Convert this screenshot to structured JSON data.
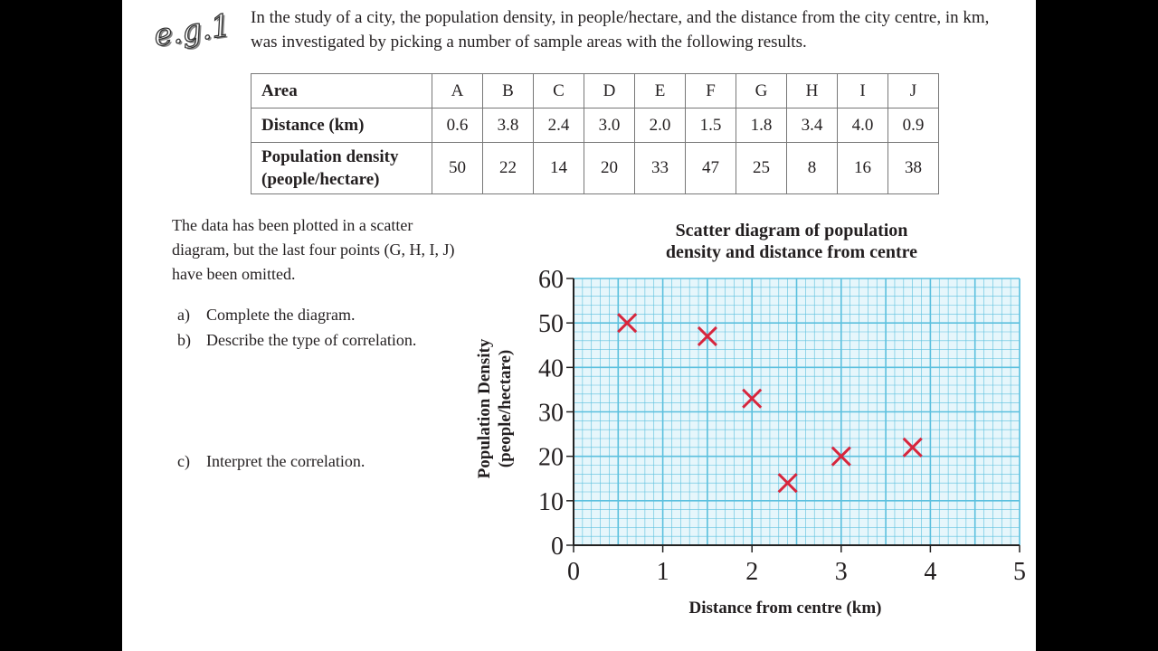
{
  "label": "e.g.1",
  "intro": "In the study of a city, the population density, in people/hectare, and the distance from the city centre, in km, was investigated by picking a number of sample areas with the following results.",
  "table": {
    "rows": [
      {
        "header": "Area",
        "values": [
          "A",
          "B",
          "C",
          "D",
          "E",
          "F",
          "G",
          "H",
          "I",
          "J"
        ]
      },
      {
        "header": "Distance (km)",
        "values": [
          "0.6",
          "3.8",
          "2.4",
          "3.0",
          "2.0",
          "1.5",
          "1.8",
          "3.4",
          "4.0",
          "0.9"
        ]
      },
      {
        "header": "Population density (people/hectare)",
        "values": [
          "50",
          "22",
          "14",
          "20",
          "33",
          "47",
          "25",
          "8",
          "16",
          "38"
        ]
      }
    ]
  },
  "text": "The data has been plotted in a scatter diagram, but the last four points (G, H, I, J) have been omitted.",
  "questions": [
    {
      "letter": "a)",
      "text": "Complete the diagram."
    },
    {
      "letter": "b)",
      "text": "Describe the type of correlation."
    },
    {
      "letter": "c)",
      "text": "Interpret the correlation."
    }
  ],
  "chart_data": {
    "type": "scatter",
    "title": "Scatter diagram of population density and distance from centre",
    "title_lines": [
      "Scatter diagram of population",
      "density and distance from centre"
    ],
    "xlabel": "Distance from centre (km)",
    "ylabel_lines": [
      "Population Density",
      "(people/hectare)"
    ],
    "xlim": [
      0,
      5
    ],
    "ylim": [
      0,
      60
    ],
    "xticks": [
      "0",
      "1",
      "2",
      "3",
      "4",
      "5"
    ],
    "yticks": [
      "0",
      "10",
      "20",
      "30",
      "40",
      "50",
      "60"
    ],
    "grid": true,
    "grid_color": "#5bc0de",
    "marker": "x",
    "marker_color": "#d7263d",
    "points": [
      {
        "x": 0.6,
        "y": 50
      },
      {
        "x": 1.5,
        "y": 47
      },
      {
        "x": 2.0,
        "y": 33
      },
      {
        "x": 2.4,
        "y": 14
      },
      {
        "x": 3.0,
        "y": 20
      },
      {
        "x": 3.8,
        "y": 22
      }
    ]
  }
}
